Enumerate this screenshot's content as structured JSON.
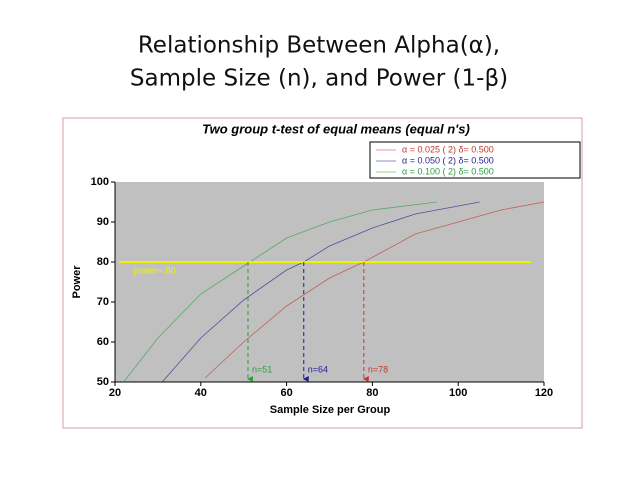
{
  "slide_title": [
    "Relationship Between Alpha(α),",
    "Sample Size (n), and Power (1-β)"
  ],
  "chart_data": {
    "type": "line",
    "title": "Two group t-test of equal means (equal n's)",
    "xlabel": "Sample Size per Group",
    "ylabel": "Power",
    "xlim": [
      20,
      120
    ],
    "xticks": [
      20,
      40,
      60,
      80,
      100,
      120
    ],
    "ylim": [
      50,
      100
    ],
    "yticks": [
      50,
      60,
      70,
      80,
      90,
      100
    ],
    "legend": "upper right",
    "series": [
      {
        "name": "α = 0.025 ( 2) δ= 0.500",
        "color": "#c0392b",
        "x": [
          41,
          50,
          60,
          70,
          78,
          90,
          100,
          110,
          120
        ],
        "values": [
          51,
          60,
          69,
          76,
          80,
          87,
          90,
          93,
          95
        ]
      },
      {
        "name": "α = 0.050 ( 2) δ= 0.500",
        "color": "#1f1f8f",
        "x": [
          31,
          40,
          50,
          60,
          64,
          70,
          80,
          90,
          105
        ],
        "values": [
          50,
          61,
          70.5,
          78,
          80,
          84,
          88.5,
          92,
          95
        ]
      },
      {
        "name": "α = 0.100 ( 2) δ= 0.500",
        "color": "#2e9e3e",
        "x": [
          22,
          30,
          40,
          50,
          60,
          70,
          80,
          95
        ],
        "values": [
          50,
          61,
          72,
          79,
          86,
          90,
          93,
          95
        ]
      }
    ],
    "reference_line": {
      "label": "power=.80",
      "value": 80,
      "color": "#f2f200",
      "xrange": [
        21,
        117
      ]
    },
    "markers": [
      {
        "label": "n=51",
        "x": 51,
        "color": "#2e9e3e"
      },
      {
        "label": "n=64",
        "x": 64,
        "color": "#1f1f8f"
      },
      {
        "label": "n=78",
        "x": 78,
        "color": "#c0392b"
      }
    ]
  }
}
